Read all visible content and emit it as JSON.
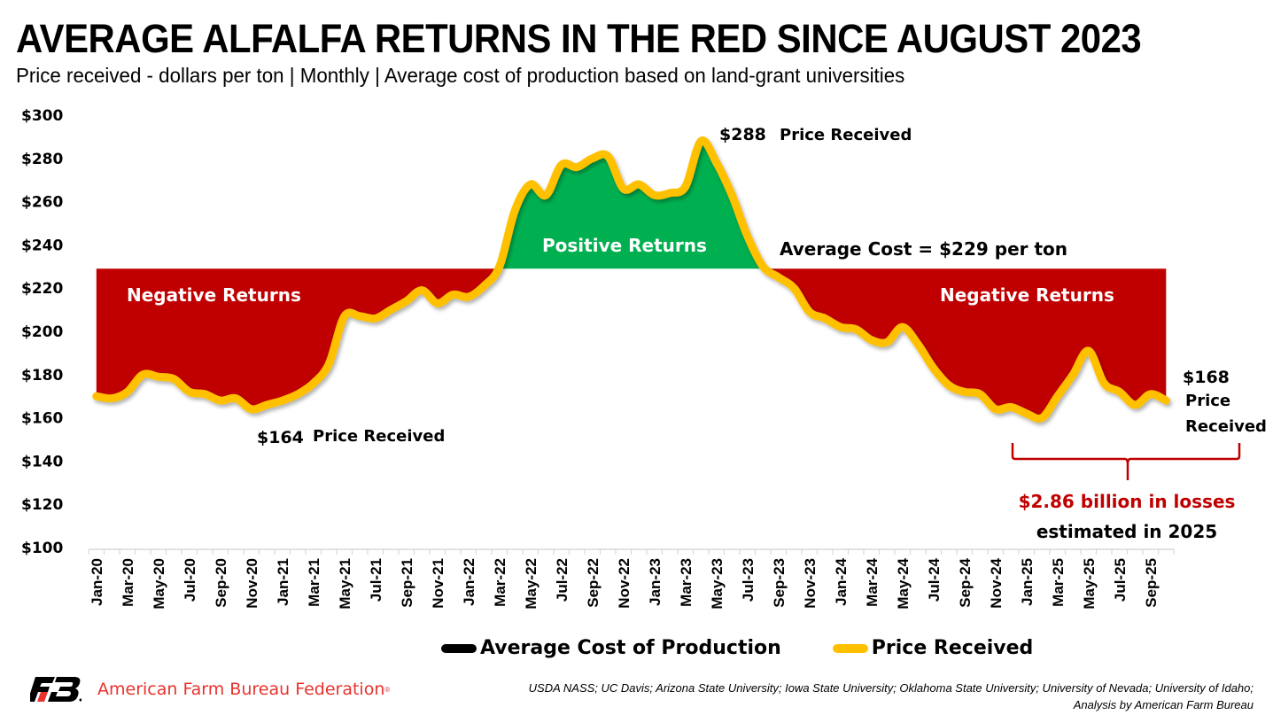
{
  "header": {
    "title": "AVERAGE ALFALFA RETURNS IN THE RED SINCE AUGUST 2023",
    "subtitle": "Price received - dollars per ton | Monthly | Average cost of production based on land-grant universities"
  },
  "colors": {
    "price_line": "#ffc000",
    "cost_line": "#000000",
    "negative_fill": "#c00000",
    "positive_fill": "#00b050",
    "loss_text": "#c00000",
    "brand": "#e8322d"
  },
  "chart_data": {
    "type": "area",
    "title": "AVERAGE ALFALFA RETURNS IN THE RED SINCE AUGUST 2023",
    "subtitle": "Price received - dollars per ton | Monthly | Average cost of production based on land-grant universities",
    "xlabel": "",
    "ylabel": "",
    "ylim": [
      100,
      300
    ],
    "yticks": [
      100,
      120,
      140,
      160,
      180,
      200,
      220,
      240,
      260,
      280,
      300
    ],
    "ytick_labels": [
      "$100",
      "$120",
      "$140",
      "$160",
      "$180",
      "$200",
      "$220",
      "$240",
      "$260",
      "$280",
      "$300"
    ],
    "x": [
      "Jan-20",
      "Feb-20",
      "Mar-20",
      "Apr-20",
      "May-20",
      "Jun-20",
      "Jul-20",
      "Aug-20",
      "Sep-20",
      "Oct-20",
      "Nov-20",
      "Dec-20",
      "Jan-21",
      "Feb-21",
      "Mar-21",
      "Apr-21",
      "May-21",
      "Jun-21",
      "Jul-21",
      "Aug-21",
      "Sep-21",
      "Oct-21",
      "Nov-21",
      "Dec-21",
      "Jan-22",
      "Feb-22",
      "Mar-22",
      "Apr-22",
      "May-22",
      "Jun-22",
      "Jul-22",
      "Aug-22",
      "Sep-22",
      "Oct-22",
      "Nov-22",
      "Dec-22",
      "Jan-23",
      "Feb-23",
      "Mar-23",
      "Apr-23",
      "May-23",
      "Jun-23",
      "Jul-23",
      "Aug-23",
      "Sep-23",
      "Oct-23",
      "Nov-23",
      "Dec-23",
      "Jan-24",
      "Feb-24",
      "Mar-24",
      "Apr-24",
      "May-24",
      "Jun-24",
      "Jul-24",
      "Aug-24",
      "Sep-24",
      "Oct-24",
      "Nov-24",
      "Dec-24",
      "Jan-25",
      "Feb-25",
      "Mar-25",
      "Apr-25",
      "May-25",
      "Jun-25",
      "Jul-25",
      "Aug-25",
      "Sep-25",
      "Oct-25"
    ],
    "xtick_labels": [
      "Jan-20",
      "Mar-20",
      "May-20",
      "Jul-20",
      "Sep-20",
      "Nov-20",
      "Jan-21",
      "Mar-21",
      "May-21",
      "Jul-21",
      "Sep-21",
      "Nov-21",
      "Jan-22",
      "Mar-22",
      "May-22",
      "Jul-22",
      "Sep-22",
      "Nov-22",
      "Jan-23",
      "Mar-23",
      "May-23",
      "Jul-23",
      "Sep-23",
      "Nov-23",
      "Jan-24",
      "Mar-24",
      "May-24",
      "Jul-24",
      "Sep-24",
      "Nov-24",
      "Jan-25",
      "Mar-25",
      "May-25",
      "Jul-25",
      "Sep-25"
    ],
    "series": [
      {
        "name": "Average Cost of Production",
        "color": "#000000",
        "constant": 229
      },
      {
        "name": "Price Received",
        "color": "#ffc000",
        "values": [
          170,
          169,
          172,
          180,
          179,
          178,
          172,
          171,
          168,
          169,
          164,
          166,
          168,
          171,
          176,
          185,
          207,
          207,
          206,
          210,
          214,
          219,
          213,
          217,
          216,
          221,
          230,
          256,
          268,
          263,
          277,
          276,
          280,
          281,
          266,
          268,
          263,
          264,
          267,
          288,
          278,
          263,
          244,
          230,
          225,
          220,
          209,
          206,
          202,
          201,
          196,
          195,
          202,
          194,
          183,
          175,
          172,
          171,
          164,
          165,
          162,
          160,
          170,
          180,
          191,
          176,
          172,
          166,
          171,
          168
        ]
      }
    ],
    "legend": {
      "placement": "bottom",
      "entries": [
        "Average Cost of Production",
        "Price Received"
      ]
    },
    "grid": false,
    "annotations": {
      "negative_left": "Negative Returns",
      "negative_right": "Negative Returns",
      "positive": "Positive Returns",
      "cost_label": "Average Cost = $229 per ton",
      "low_value": "$164",
      "low_label": "Price Received",
      "peak_value": "$288",
      "peak_label": "Price Received",
      "end_value": "$168",
      "end_label_1": "Price",
      "end_label_2": "Received",
      "losses_line1": "$2.86 billion in losses",
      "losses_line2": "estimated in 2025"
    }
  },
  "footer": {
    "org_name": "American Farm Bureau Federation",
    "registered_mark": "®",
    "source_line1": "USDA NASS; UC Davis; Arizona State University; Iowa State University; Oklahoma State University; University of Nevada; University of Idaho;",
    "source_line2": "Analysis by American Farm Bureau"
  }
}
